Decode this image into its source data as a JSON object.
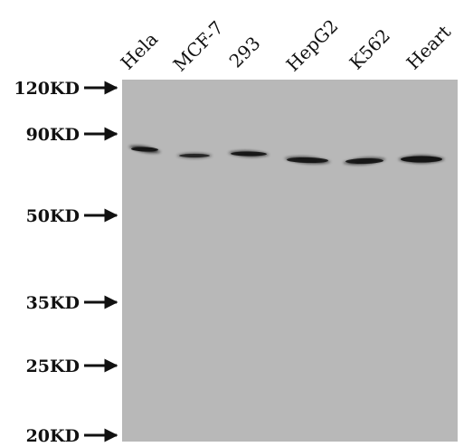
{
  "lanes": [
    {
      "label": "Hela",
      "band_intensity": 0.95
    },
    {
      "label": "MCF-7",
      "band_intensity": 0.75
    },
    {
      "label": "293",
      "band_intensity": 0.9
    },
    {
      "label": "HepG2",
      "band_intensity": 0.9
    },
    {
      "label": "K562",
      "band_intensity": 0.9
    },
    {
      "label": "Heart",
      "band_intensity": 1.0
    }
  ],
  "markers": [
    {
      "label": "120KD"
    },
    {
      "label": "90KD"
    },
    {
      "label": "50KD"
    },
    {
      "label": "35KD"
    },
    {
      "label": "25KD"
    },
    {
      "label": "20KD"
    }
  ],
  "colors": {
    "membrane": "#b8b8b8",
    "band": "#141414",
    "text": "#111111"
  }
}
